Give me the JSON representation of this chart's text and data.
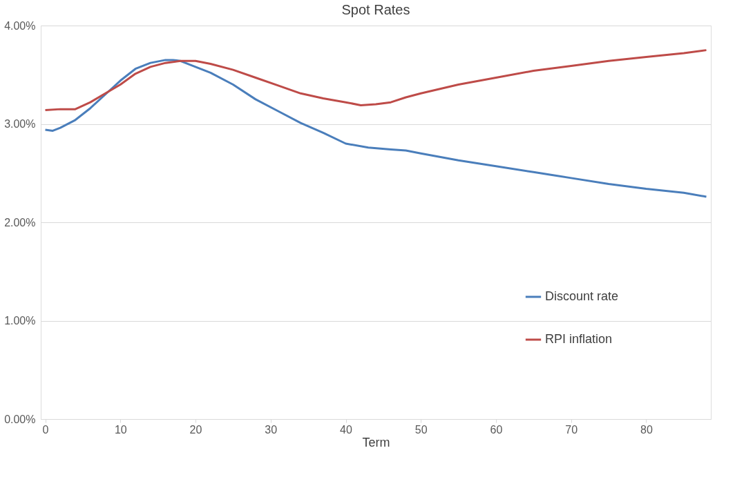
{
  "chart_data": {
    "type": "line",
    "title": "Spot Rates",
    "xlabel": "Term",
    "xlim": [
      -0.6,
      88.6
    ],
    "xticks": [
      0,
      10,
      20,
      30,
      40,
      50,
      60,
      70,
      80
    ],
    "ylim": [
      0,
      4
    ],
    "yticks": [
      {
        "value": 0,
        "label": "0.00%"
      },
      {
        "value": 1,
        "label": "1.00%"
      },
      {
        "value": 2,
        "label": "2.00%"
      },
      {
        "value": 3,
        "label": "3.00%"
      },
      {
        "value": 4,
        "label": "4.00%"
      }
    ],
    "grid": "y",
    "legend": "right",
    "marker": "none",
    "line_style": "solid",
    "series": [
      {
        "name": "Discount rate",
        "color": "#4a7ebb",
        "x": [
          0,
          1,
          2,
          4,
          6,
          8,
          10,
          12,
          14,
          16,
          17,
          18,
          20,
          22,
          25,
          28,
          31,
          34,
          37,
          40,
          43,
          46,
          48,
          50,
          55,
          60,
          65,
          70,
          75,
          80,
          85,
          88
        ],
        "values": [
          2.94,
          2.93,
          2.96,
          3.04,
          3.16,
          3.3,
          3.44,
          3.56,
          3.62,
          3.65,
          3.65,
          3.64,
          3.58,
          3.52,
          3.4,
          3.25,
          3.13,
          3.01,
          2.91,
          2.8,
          2.76,
          2.74,
          2.73,
          2.7,
          2.63,
          2.57,
          2.51,
          2.45,
          2.39,
          2.34,
          2.3,
          2.26
        ]
      },
      {
        "name": "RPI inflation",
        "color": "#be4b48",
        "x": [
          0,
          2,
          4,
          6,
          8,
          10,
          12,
          14,
          16,
          18,
          20,
          22,
          25,
          28,
          31,
          34,
          37,
          40,
          42,
          44,
          46,
          48,
          50,
          55,
          60,
          65,
          70,
          75,
          80,
          85,
          88
        ],
        "values": [
          3.14,
          3.15,
          3.15,
          3.22,
          3.31,
          3.4,
          3.51,
          3.58,
          3.62,
          3.64,
          3.64,
          3.61,
          3.55,
          3.47,
          3.39,
          3.31,
          3.26,
          3.22,
          3.19,
          3.2,
          3.22,
          3.27,
          3.31,
          3.4,
          3.47,
          3.54,
          3.59,
          3.64,
          3.68,
          3.72,
          3.75
        ]
      }
    ]
  }
}
